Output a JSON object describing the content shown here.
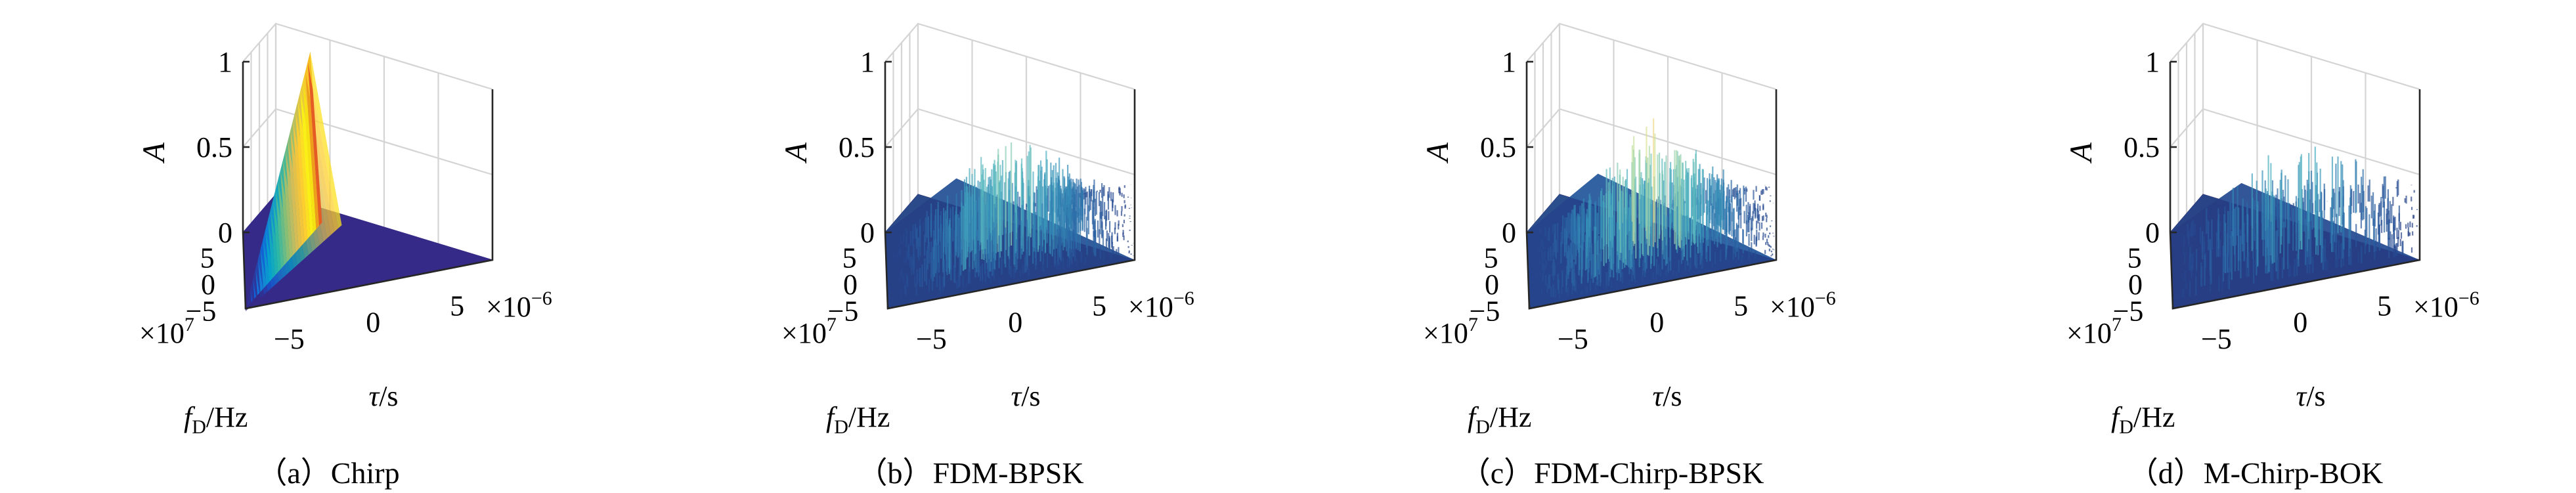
{
  "chart_data": [
    {
      "type": "surface",
      "caption": "（a）Chirp",
      "xlabel": "τ/s",
      "xunit_multiplier": "×10^-6",
      "ylabel": "f_D/Hz",
      "yunit_multiplier": "×10^7",
      "zlabel": "A",
      "xlim": [
        -7,
        7
      ],
      "ylim": [
        -7,
        7
      ],
      "zlim": [
        0,
        1
      ],
      "xticks": [
        "−5",
        "0",
        "5"
      ],
      "yticks": [
        "5",
        "0",
        "−5"
      ],
      "zticks": [
        "0",
        "0.5",
        "1"
      ],
      "peak": 1.0,
      "shape": "ridge",
      "colormap": [
        "#352a87",
        "#0f5cdd",
        "#1481d6",
        "#06a4ca",
        "#2eb7a4",
        "#87bf77",
        "#d1bb59",
        "#fec832",
        "#f9fb0e",
        "#e03a28"
      ]
    },
    {
      "type": "surface",
      "caption": "（b）FDM-BPSK",
      "xlabel": "τ/s",
      "xunit_multiplier": "×10^-6",
      "ylabel": "f_D/Hz",
      "yunit_multiplier": "×10^7",
      "zlabel": "A",
      "xlim": [
        -7,
        7
      ],
      "ylim": [
        -7,
        7
      ],
      "zlim": [
        0,
        1
      ],
      "xticks": [
        "−5",
        "0",
        "5"
      ],
      "yticks": [
        "5",
        "0",
        "−5"
      ],
      "zticks": [
        "0",
        "0.5",
        "1"
      ],
      "peak": 0.75,
      "shape": "pyramid",
      "colormap": [
        "#2a2d6e",
        "#26488f",
        "#2b6aa8",
        "#3590b8",
        "#52b5c1",
        "#8fd0b4",
        "#c9e39e",
        "#f0f0a0"
      ]
    },
    {
      "type": "surface",
      "caption": "（c）FDM-Chirp-BPSK",
      "xlabel": "τ/s",
      "xunit_multiplier": "×10^-6",
      "ylabel": "f_D/Hz",
      "yunit_multiplier": "×10^7",
      "zlabel": "A",
      "xlim": [
        -7,
        7
      ],
      "ylim": [
        -7,
        7
      ],
      "zlim": [
        0,
        1
      ],
      "xticks": [
        "−5",
        "0",
        "5"
      ],
      "yticks": [
        "5",
        "0",
        "−5"
      ],
      "zticks": [
        "0",
        "0.5",
        "1"
      ],
      "peak": 0.8,
      "shape": "pyramid",
      "colormap": [
        "#2a2d6e",
        "#26488f",
        "#2b6aa8",
        "#3590b8",
        "#52b5c1",
        "#8fd0b4",
        "#d5e59a",
        "#f3d98a",
        "#f2a9a0"
      ]
    },
    {
      "type": "surface",
      "caption": "（d）M-Chirp-BOK",
      "xlabel": "τ/s",
      "xunit_multiplier": "×10^-6",
      "ylabel": "f_D/Hz",
      "yunit_multiplier": "×10^7",
      "zlabel": "A",
      "xlim": [
        -7,
        7
      ],
      "ylim": [
        -7,
        7
      ],
      "zlim": [
        0,
        1
      ],
      "xticks": [
        "−5",
        "0",
        "5"
      ],
      "yticks": [
        "5",
        "0",
        "−5"
      ],
      "zticks": [
        "0",
        "0.5",
        "1"
      ],
      "peak": 0.7,
      "shape": "spikes",
      "colormap": [
        "#2a2d6e",
        "#26488f",
        "#2b6aa8",
        "#3590b8",
        "#52b5c1",
        "#8fd0b4",
        "#c9e39e"
      ]
    }
  ]
}
